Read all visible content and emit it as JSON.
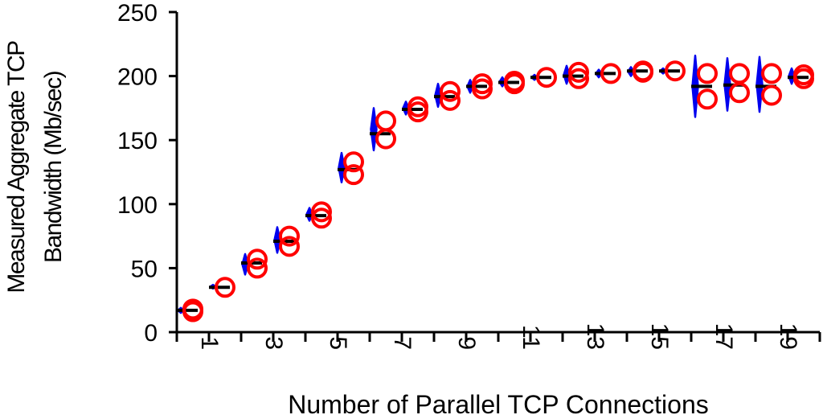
{
  "chart_data": {
    "type": "scatter",
    "xlabel": "Number of Parallel TCP Connections",
    "ylabel_lines": [
      "Measured Aggregate TCP",
      "Bandwidth (Mb/sec)"
    ],
    "ylim": [
      0,
      250
    ],
    "yticks": [
      0,
      50,
      100,
      150,
      200,
      250
    ],
    "xlim": [
      0.5,
      20.5
    ],
    "xticks": [
      1,
      3,
      5,
      7,
      9,
      11,
      13,
      15,
      17,
      19
    ],
    "colors": {
      "circles": "#ff0000",
      "diamonds": "#0000ee",
      "mean": "#000000",
      "axis": "#000000"
    },
    "series": [
      {
        "kind": "measured-circles",
        "points": [
          [
            1,
            18
          ],
          [
            1,
            16
          ],
          [
            2,
            35
          ],
          [
            3,
            57
          ],
          [
            3,
            50
          ],
          [
            4,
            75
          ],
          [
            4,
            67
          ],
          [
            5,
            94
          ],
          [
            5,
            89
          ],
          [
            6,
            133
          ],
          [
            6,
            123
          ],
          [
            7,
            165
          ],
          [
            7,
            151
          ],
          [
            8,
            176
          ],
          [
            8,
            172
          ],
          [
            9,
            188
          ],
          [
            9,
            181
          ],
          [
            10,
            194
          ],
          [
            10,
            190
          ],
          [
            11,
            196
          ],
          [
            11,
            194
          ],
          [
            12,
            199
          ],
          [
            13,
            203
          ],
          [
            13,
            198
          ],
          [
            14,
            202
          ],
          [
            15,
            204
          ],
          [
            15,
            203
          ],
          [
            16,
            204
          ],
          [
            17,
            202
          ],
          [
            17,
            182
          ],
          [
            18,
            202
          ],
          [
            18,
            187
          ],
          [
            19,
            202
          ],
          [
            19,
            185
          ],
          [
            20,
            201
          ],
          [
            20,
            198
          ]
        ]
      },
      {
        "kind": "blue-range",
        "ranges": [
          [
            1,
            15,
            19
          ],
          [
            2,
            34,
            37
          ],
          [
            3,
            45,
            61
          ],
          [
            4,
            62,
            82
          ],
          [
            5,
            87,
            97
          ],
          [
            6,
            117,
            140
          ],
          [
            7,
            142,
            175
          ],
          [
            8,
            170,
            180
          ],
          [
            9,
            176,
            194
          ],
          [
            10,
            187,
            197
          ],
          [
            11,
            192,
            199
          ],
          [
            12,
            197,
            201
          ],
          [
            13,
            194,
            208
          ],
          [
            14,
            199,
            205
          ],
          [
            15,
            200,
            207
          ],
          [
            16,
            202,
            206
          ],
          [
            17,
            168,
            216
          ],
          [
            18,
            173,
            214
          ],
          [
            19,
            172,
            215
          ],
          [
            20,
            194,
            206
          ]
        ]
      },
      {
        "kind": "mean-bar",
        "values": [
          17,
          35,
          54,
          71,
          91,
          127,
          155,
          174,
          184,
          192,
          195,
          199,
          200,
          202,
          204,
          204,
          192,
          193,
          192,
          199
        ]
      }
    ]
  }
}
